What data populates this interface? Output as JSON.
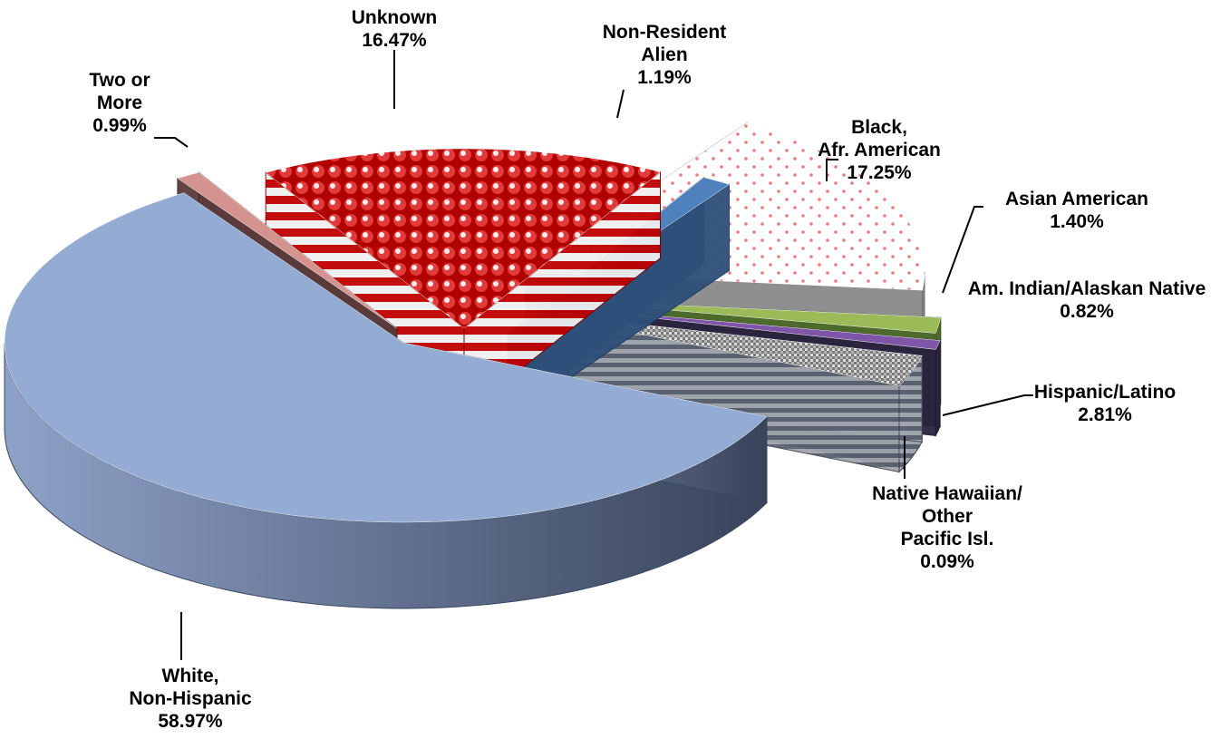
{
  "chart_data": {
    "type": "pie",
    "title": "",
    "categories": [
      "White, Non-Hispanic",
      "Two or More",
      "Unknown",
      "Non-Resident Alien",
      "Black, Afr. American",
      "Asian American",
      "Am. Indian/Alaskan Native",
      "Hispanic/Latino",
      "Native Hawaiian/ Other Pacific Isl."
    ],
    "values": [
      58.97,
      0.99,
      16.47,
      1.19,
      17.25,
      1.4,
      0.82,
      2.81,
      0.09
    ],
    "labels": [
      {
        "lines": [
          "White,",
          "Non-Hispanic",
          "58.97%"
        ]
      },
      {
        "lines": [
          "Two or",
          "More",
          "0.99%"
        ]
      },
      {
        "lines": [
          "Unknown",
          "16.47%"
        ]
      },
      {
        "lines": [
          "Non-Resident",
          "Alien",
          "1.19%"
        ]
      },
      {
        "lines": [
          "Black,",
          "Afr. American",
          "17.25%"
        ]
      },
      {
        "lines": [
          "Asian American",
          "1.40%"
        ]
      },
      {
        "lines": [
          "Am. Indian/Alaskan Native",
          "0.82%"
        ]
      },
      {
        "lines": [
          "Hispanic/Latino",
          "2.81%"
        ]
      },
      {
        "lines": [
          "Native Hawaiian/",
          "Other",
          "Pacific Isl.",
          "0.09%"
        ]
      }
    ],
    "colors": [
      "#94abd3",
      "#d4938f",
      "#c00000",
      "#4f81bd",
      "#f2c7c7",
      "#9bbb59",
      "#7f55a8",
      "#8c8c8c",
      "#4a4a4a"
    ],
    "style": "3d-exploded",
    "legend": "none"
  }
}
